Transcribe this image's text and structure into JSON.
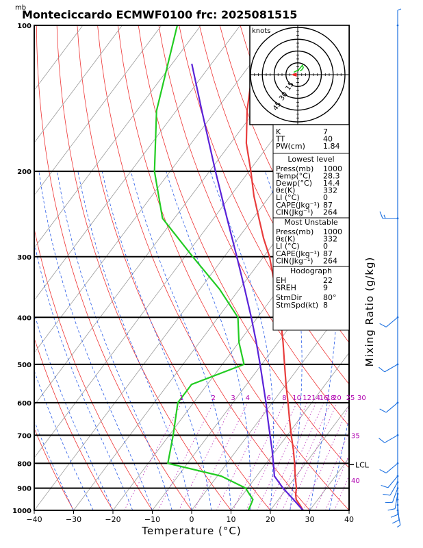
{
  "title": "Monteciccardo ECMWF0100 frc: 2025081515",
  "unit_mb": "mb",
  "chart_data": {
    "type": "line",
    "subtype": "skew-T log-p",
    "xlabel": "Temperature (°C)",
    "ylabel": "Mixing Ratio (g/kg)",
    "x_ticks": [
      -40,
      -30,
      -20,
      -10,
      0,
      10,
      20,
      30,
      40
    ],
    "p_ticks": [
      100,
      200,
      300,
      400,
      500,
      600,
      700,
      800,
      900,
      1000
    ],
    "mixing_ratio_labels": [
      "1",
      "2",
      "3",
      "4",
      "6",
      "8",
      "10",
      "12",
      "14",
      "16",
      "18",
      "20",
      "25",
      "30",
      "35",
      "40"
    ],
    "lcl_label": "LCL",
    "lcl_pressure": 805,
    "series": [
      {
        "key": "temperature",
        "color": "#e83c3c",
        "points": [
          [
            1000,
            28.3
          ],
          [
            975,
            26.5
          ],
          [
            950,
            24.5
          ],
          [
            925,
            23.3
          ],
          [
            900,
            22.4
          ],
          [
            850,
            19.8
          ],
          [
            800,
            17.2
          ],
          [
            750,
            14.3
          ],
          [
            700,
            11.0
          ],
          [
            650,
            7.6
          ],
          [
            600,
            4.0
          ],
          [
            550,
            0.0
          ],
          [
            500,
            -4.2
          ],
          [
            450,
            -8.8
          ],
          [
            400,
            -14.2
          ],
          [
            350,
            -20.8
          ],
          [
            300,
            -28.5
          ],
          [
            275,
            -33.5
          ],
          [
            250,
            -38.5
          ],
          [
            225,
            -44.0
          ],
          [
            200,
            -49.5
          ],
          [
            175,
            -56.0
          ],
          [
            150,
            -62.0
          ],
          [
            125,
            -68.0
          ],
          [
            100,
            -74.0
          ]
        ]
      },
      {
        "key": "dewpoint",
        "color": "#22cc22",
        "points": [
          [
            1000,
            14.4
          ],
          [
            975,
            14.0
          ],
          [
            950,
            13.5
          ],
          [
            925,
            11.5
          ],
          [
            900,
            9.5
          ],
          [
            850,
            1.0
          ],
          [
            800,
            -15.0
          ],
          [
            700,
            -19.0
          ],
          [
            600,
            -24.0
          ],
          [
            550,
            -24.0
          ],
          [
            500,
            -14.5
          ],
          [
            450,
            -20.0
          ],
          [
            400,
            -25.0
          ],
          [
            350,
            -35.0
          ],
          [
            300,
            -48.0
          ],
          [
            250,
            -63.0
          ],
          [
            200,
            -74.0
          ],
          [
            150,
            -85.0
          ],
          [
            100,
            -96.0
          ]
        ]
      },
      {
        "key": "parcel",
        "color": "#5a22d8",
        "points": [
          [
            1000,
            28.3
          ],
          [
            950,
            23.8
          ],
          [
            900,
            19.0
          ],
          [
            850,
            14.5
          ],
          [
            805,
            12.1
          ],
          [
            750,
            8.9
          ],
          [
            700,
            5.6
          ],
          [
            650,
            2.1
          ],
          [
            600,
            -1.6
          ],
          [
            550,
            -5.8
          ],
          [
            500,
            -10.4
          ],
          [
            450,
            -15.6
          ],
          [
            400,
            -21.6
          ],
          [
            350,
            -28.6
          ],
          [
            300,
            -36.8
          ],
          [
            250,
            -46.6
          ],
          [
            200,
            -58.5
          ],
          [
            150,
            -73.5
          ],
          [
            120,
            -85.0
          ]
        ]
      }
    ],
    "hodograph": {
      "unit": "knots",
      "ring_labels": [
        "15",
        "30",
        "45"
      ],
      "hodo": [
        [
          3,
          -5
        ],
        [
          5,
          -6
        ],
        [
          7,
          -9
        ],
        [
          6,
          -12
        ],
        [
          1,
          -6
        ],
        [
          -5,
          -3
        ]
      ],
      "storm_motion": [
        -3,
        0
      ]
    },
    "wind_barbs": [
      {
        "p": 1000,
        "dir": 170,
        "spd": 5
      },
      {
        "p": 975,
        "dir": 175,
        "spd": 8
      },
      {
        "p": 950,
        "dir": 180,
        "spd": 10
      },
      {
        "p": 925,
        "dir": 190,
        "spd": 10
      },
      {
        "p": 900,
        "dir": 200,
        "spd": 10
      },
      {
        "p": 875,
        "dir": 210,
        "spd": 12
      },
      {
        "p": 850,
        "dir": 220,
        "spd": 12
      },
      {
        "p": 800,
        "dir": 230,
        "spd": 12
      },
      {
        "p": 700,
        "dir": 240,
        "spd": 10
      },
      {
        "p": 600,
        "dir": 230,
        "spd": 10
      },
      {
        "p": 500,
        "dir": 240,
        "spd": 10
      },
      {
        "p": 400,
        "dir": 230,
        "spd": 10
      },
      {
        "p": 250,
        "dir": 270,
        "spd": 15
      },
      {
        "p": 100,
        "dir": 0,
        "spd": 5
      }
    ]
  },
  "indices": {
    "top": [
      [
        "K",
        "7"
      ],
      [
        "TT",
        "40"
      ],
      [
        "PW(cm)",
        "1.84"
      ]
    ],
    "lowest_title": "Lowest level",
    "lowest": [
      [
        "Press(mb)",
        "1000"
      ],
      [
        "Temp(°C)",
        "28.3"
      ],
      [
        "Dewp(°C)",
        "14.4"
      ],
      [
        "θε(K)",
        "332"
      ],
      [
        "LI (°C)",
        "0"
      ],
      [
        "CAPE(Jkg⁻¹)",
        "87"
      ],
      [
        "CIN(Jkg⁻¹)",
        "264"
      ]
    ],
    "unstable_title": "Most Unstable",
    "unstable": [
      [
        "Press(mb)",
        "1000"
      ],
      [
        "θε(K)",
        "332"
      ],
      [
        "LI (°C)",
        "0"
      ],
      [
        "CAPE(Jkg⁻¹)",
        "87"
      ],
      [
        "CIN(Jkg⁻¹)",
        "264"
      ]
    ],
    "hodo_title": "Hodograph",
    "hodo_rows": [
      [
        "EH",
        "22"
      ],
      [
        "SREH",
        "9"
      ]
    ],
    "storm_rows": [
      [
        "StmDir",
        "80°"
      ],
      [
        "StmSpd(kt)",
        "8"
      ]
    ]
  }
}
